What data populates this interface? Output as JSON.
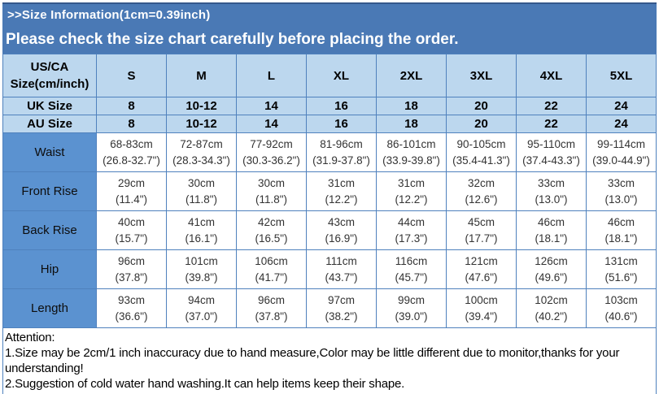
{
  "header_bars": {
    "bar1": ">>Size Information(1cm=0.39inch)",
    "bar2": "Please check the size chart carefully before placing the order."
  },
  "size_chart": {
    "corner_label": "US/CA\nSize(cm/inch)",
    "size_columns": [
      "S",
      "M",
      "L",
      "XL",
      "2XL",
      "3XL",
      "4XL",
      "5XL"
    ],
    "region_rows": [
      {
        "label": "UK Size",
        "cells": [
          "8",
          "10-12",
          "14",
          "16",
          "18",
          "20",
          "22",
          "24"
        ]
      },
      {
        "label": "AU Size",
        "cells": [
          "8",
          "10-12",
          "14",
          "16",
          "18",
          "20",
          "22",
          "24"
        ]
      }
    ],
    "measurement_rows": [
      {
        "label": "Waist",
        "cells": [
          "68-83cm\n(26.8-32.7\")",
          "72-87cm\n(28.3-34.3\")",
          "77-92cm\n(30.3-36.2\")",
          "81-96cm\n(31.9-37.8\")",
          "86-101cm\n(33.9-39.8\")",
          "90-105cm\n(35.4-41.3\")",
          "95-110cm\n(37.4-43.3\")",
          "99-114cm\n(39.0-44.9\")"
        ]
      },
      {
        "label": "Front Rise",
        "cells": [
          "29cm\n(11.4\")",
          "30cm\n(11.8\")",
          "30cm\n(11.8\")",
          "31cm\n(12.2\")",
          "31cm\n(12.2\")",
          "32cm\n(12.6\")",
          "33cm\n(13.0\")",
          "33cm\n(13.0\")"
        ]
      },
      {
        "label": "Back Rise",
        "cells": [
          "40cm\n(15.7\")",
          "41cm\n(16.1\")",
          "42cm\n(16.5\")",
          "43cm\n(16.9\")",
          "44cm\n(17.3\")",
          "45cm\n(17.7\")",
          "46cm\n(18.1\")",
          "46cm\n(18.1\")"
        ]
      },
      {
        "label": "Hip",
        "cells": [
          "96cm\n(37.8\")",
          "101cm\n(39.8\")",
          "106cm\n(41.7\")",
          "111cm\n(43.7\")",
          "116cm\n(45.7\")",
          "121cm\n(47.6\")",
          "126cm\n(49.6\")",
          "131cm\n(51.6\")"
        ]
      },
      {
        "label": "Length",
        "cells": [
          "93cm\n(36.6\")",
          "94cm\n(37.0\")",
          "96cm\n(37.8\")",
          "97cm\n(38.2\")",
          "99cm\n(39.0\")",
          "100cm\n(39.4\")",
          "102cm\n(40.2\")",
          "103cm\n(40.6\")"
        ]
      }
    ]
  },
  "attention": {
    "heading": "Attention:",
    "notes": [
      "1.Size may be 2cm/1 inch inaccuracy due to hand measure,Color may be little different due to monitor,thanks for your understanding!",
      "2.Suggestion of cold water hand washing.It can help items keep their shape."
    ]
  },
  "colors": {
    "panel_blue": "#4a79b5",
    "panel_border": "#35588c",
    "grid_blue": "#4f81bd",
    "light_cell_blue": "#bcd7ee",
    "label_cell_blue": "#5b92d0",
    "data_text": "#333333"
  }
}
